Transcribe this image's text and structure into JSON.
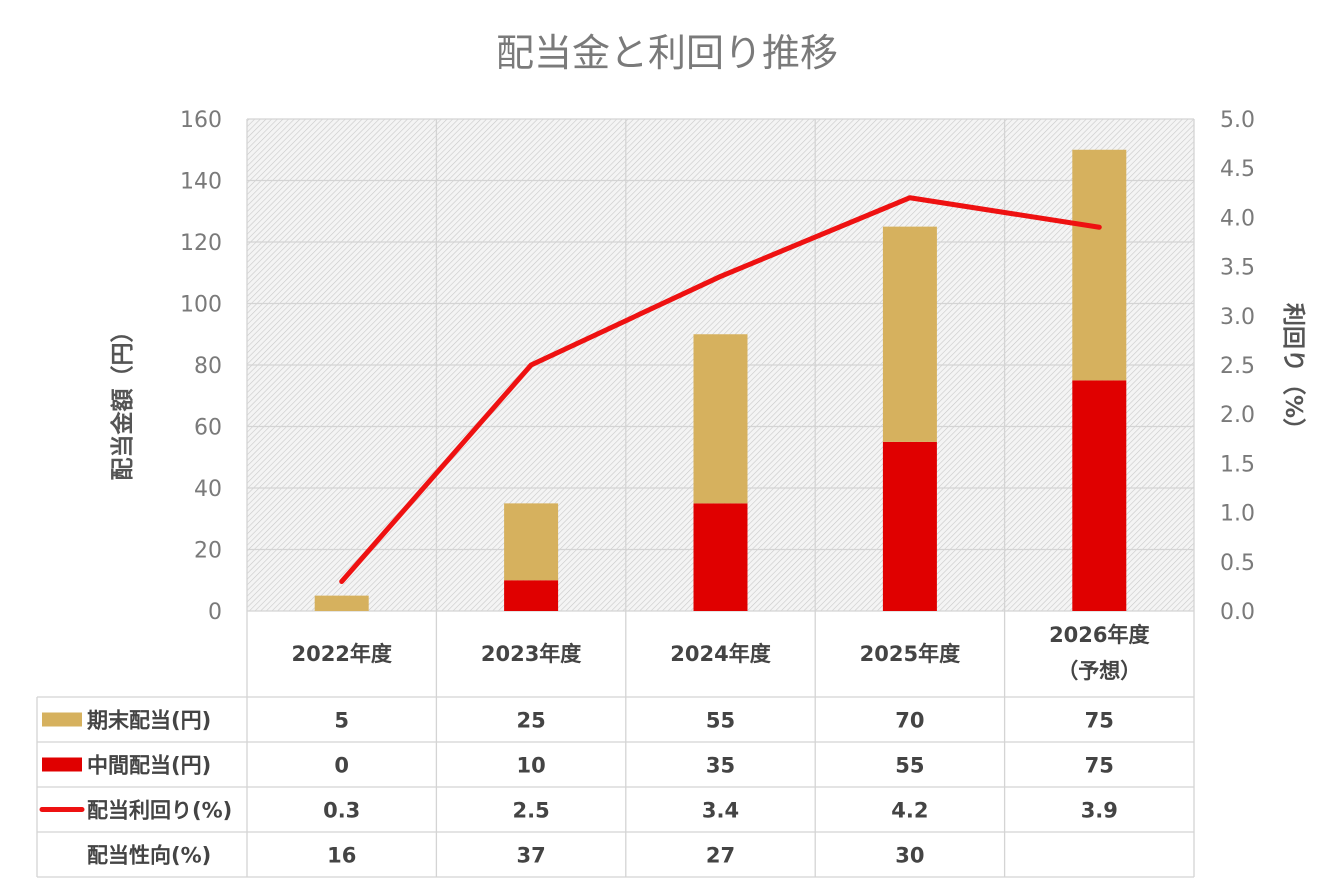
{
  "chart_data": {
    "type": "bar",
    "title": "配当金と利回り推移",
    "categories": [
      "2022年度",
      "2023年度",
      "2024年度",
      "2025年度",
      "2026年度"
    ],
    "category_notes": [
      "",
      "",
      "",
      "",
      "（予想）"
    ],
    "series": [
      {
        "name": "中間配当(円)",
        "type": "bar",
        "stacked": true,
        "axis": "left",
        "color": "#e00000",
        "values": [
          0,
          10,
          35,
          55,
          75
        ]
      },
      {
        "name": "期末配当(円)",
        "type": "bar",
        "stacked": true,
        "axis": "left",
        "color": "#d6b15e",
        "values": [
          5,
          25,
          55,
          70,
          75
        ]
      },
      {
        "name": "配当利回り(%)",
        "type": "line",
        "axis": "right",
        "color": "#ee1111",
        "values": [
          0.3,
          2.5,
          3.4,
          4.2,
          3.9
        ]
      }
    ],
    "y_left": {
      "label": "配当金額（円）",
      "min": 0,
      "max": 160,
      "ticks": [
        "0",
        "20",
        "40",
        "60",
        "80",
        "100",
        "120",
        "140",
        "160"
      ]
    },
    "y_right": {
      "label": "利回り（%）",
      "min": 0,
      "max": 5,
      "ticks": [
        "0.0",
        "0.5",
        "1.0",
        "1.5",
        "2.0",
        "2.5",
        "3.0",
        "3.5",
        "4.0",
        "4.5",
        "5.0"
      ]
    },
    "grid": true,
    "data_table": {
      "rows": [
        {
          "label": "期末配当(円)",
          "key": "kimatsu",
          "values": [
            "5",
            "25",
            "55",
            "70",
            "75"
          ]
        },
        {
          "label": "中間配当(円)",
          "key": "chukan",
          "values": [
            "0",
            "10",
            "35",
            "55",
            "75"
          ]
        },
        {
          "label": "配当利回り(%)",
          "key": "yield",
          "values": [
            "0.3",
            "2.5",
            "3.4",
            "4.2",
            "3.9"
          ]
        },
        {
          "label": "配当性向(%)",
          "key": "payout",
          "values": [
            "16",
            "37",
            "27",
            "30",
            ""
          ]
        }
      ]
    }
  }
}
